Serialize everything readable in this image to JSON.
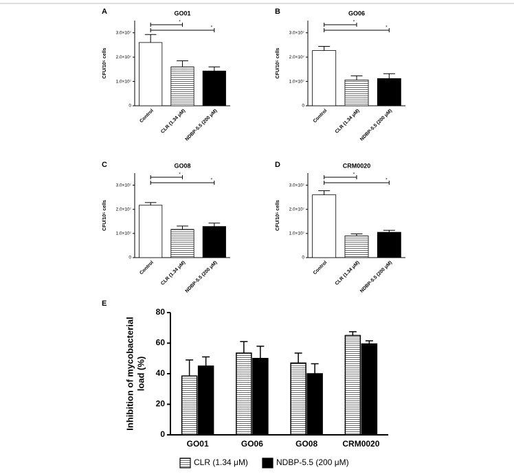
{
  "chart_data": [
    {
      "type": "bar",
      "panel": "A",
      "title": "GO01",
      "ylabel": "CFU/10⁵ cells",
      "categories": [
        "Control",
        "CLR (1.34 μM)",
        "NDBP-5.5 (200 μM)"
      ],
      "values": [
        26000000,
        16000000,
        14300000
      ],
      "errors": [
        3300000,
        2500000,
        1700000
      ],
      "bar_styles": [
        "open",
        "striped",
        "solid"
      ],
      "ylim": [
        0,
        35000000
      ],
      "yticks": [
        0,
        {
          "value": 10000000,
          "label": "1.0×10⁷"
        },
        {
          "value": 20000000,
          "label": "2.0×10⁷"
        },
        {
          "value": 30000000,
          "label": "3.0×10⁷"
        }
      ],
      "annotations": [
        "*",
        "*"
      ]
    },
    {
      "type": "bar",
      "panel": "B",
      "title": "GO06",
      "ylabel": "CFU/10⁵ cells",
      "categories": [
        "Control",
        "CLR (1.34 μM)",
        "NDBP-5.5 (200 μM)"
      ],
      "values": [
        22700000,
        10600000,
        11200000
      ],
      "errors": [
        1700000,
        1700000,
        2000000
      ],
      "bar_styles": [
        "open",
        "striped",
        "solid"
      ],
      "ylim": [
        0,
        35000000
      ],
      "yticks": [
        0,
        {
          "value": 10000000,
          "label": "1.0×10⁷"
        },
        {
          "value": 20000000,
          "label": "2.0×10⁷"
        },
        {
          "value": 30000000,
          "label": "3.0×10⁷"
        }
      ],
      "annotations": [
        "*",
        "*"
      ]
    },
    {
      "type": "bar",
      "panel": "C",
      "title": "GO08",
      "ylabel": "CFU/10⁵ cells",
      "categories": [
        "Control",
        "CLR (1.34 μM)",
        "NDBP-5.5 (200 μM)"
      ],
      "values": [
        21700000,
        11700000,
        12900000
      ],
      "errors": [
        1100000,
        1400000,
        1400000
      ],
      "bar_styles": [
        "open",
        "striped",
        "solid"
      ],
      "ylim": [
        0,
        35000000
      ],
      "yticks": [
        0,
        {
          "value": 10000000,
          "label": "1.0×10⁷"
        },
        {
          "value": 20000000,
          "label": "2.0×10⁷"
        },
        {
          "value": 30000000,
          "label": "3.0×10⁷"
        }
      ],
      "annotations": [
        "*",
        "*"
      ]
    },
    {
      "type": "bar",
      "panel": "D",
      "title": "CRM0020",
      "ylabel": "CFU/10⁵ cells",
      "categories": [
        "Control",
        "CLR (1.34 μM)",
        "NDBP-5.5 (200 μM)"
      ],
      "values": [
        26000000,
        9000000,
        10500000
      ],
      "errors": [
        1700000,
        800000,
        800000
      ],
      "bar_styles": [
        "open",
        "striped",
        "solid"
      ],
      "ylim": [
        0,
        35000000
      ],
      "yticks": [
        0,
        {
          "value": 10000000,
          "label": "1.0×10⁷"
        },
        {
          "value": 20000000,
          "label": "2.0×10⁷"
        },
        {
          "value": 30000000,
          "label": "3.0×10⁷"
        }
      ],
      "annotations": [
        "*",
        "*"
      ]
    },
    {
      "type": "grouped_bar",
      "panel": "E",
      "ylabel": [
        "Inhibition of mycobacterial",
        "load (%)"
      ],
      "categories": [
        "GO01",
        "GO06",
        "GO08",
        "CRM0020"
      ],
      "series": [
        {
          "name": "CLR (1.34 μM)",
          "style": "striped",
          "values": [
            38.5,
            53.5,
            47,
            65
          ],
          "errors": [
            10.5,
            7.5,
            6.5,
            2.5
          ]
        },
        {
          "name": "NDBP-5.5 (200 μM)",
          "style": "solid",
          "values": [
            45,
            50,
            40,
            59.5
          ],
          "errors": [
            6,
            8,
            6.5,
            2
          ]
        }
      ],
      "ylim": [
        0,
        80
      ],
      "yticks": [
        0,
        20,
        40,
        60,
        80
      ]
    }
  ]
}
